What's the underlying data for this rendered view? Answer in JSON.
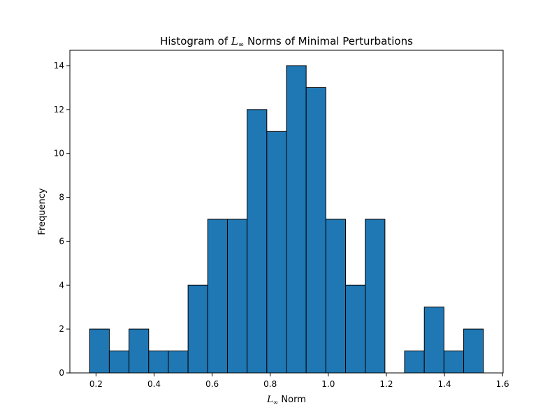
{
  "chart_data": {
    "type": "bar",
    "title": {
      "prefix": "Histogram of ",
      "symbol": "L",
      "subscript": "∞",
      "suffix": " Norms of Minimal Perturbations"
    },
    "xlabel": {
      "symbol": "L",
      "subscript": "∞",
      "suffix": " Norm"
    },
    "ylabel": "Frequency",
    "bin_edges": [
      0.178,
      0.2458,
      0.3136,
      0.3814,
      0.4492,
      0.517,
      0.5848,
      0.6526,
      0.7204,
      0.7882,
      0.856,
      0.9238,
      0.9916,
      1.0594,
      1.1272,
      1.195,
      1.2628,
      1.3306,
      1.3984,
      1.4662,
      1.534
    ],
    "values": [
      2,
      1,
      2,
      1,
      1,
      4,
      7,
      7,
      12,
      11,
      14,
      13,
      7,
      4,
      7,
      0,
      1,
      3,
      1,
      2
    ],
    "xlim": [
      0.11,
      1.602
    ],
    "ylim": [
      0,
      14.7
    ],
    "xticks": [
      0.2,
      0.4,
      0.6,
      0.8,
      1.0,
      1.2,
      1.4,
      1.6
    ],
    "xtick_labels": [
      "0.2",
      "0.4",
      "0.6",
      "0.8",
      "1.0",
      "1.2",
      "1.4",
      "1.6"
    ],
    "yticks": [
      0,
      2,
      4,
      6,
      8,
      10,
      12,
      14
    ],
    "ytick_labels": [
      "0",
      "2",
      "4",
      "6",
      "8",
      "10",
      "12",
      "14"
    ],
    "bar_color": "#1f77b4",
    "edge_color": "#000000",
    "grid": false,
    "legend": "none"
  }
}
